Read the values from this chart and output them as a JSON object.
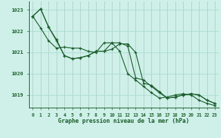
{
  "title": "Graphe pression niveau de la mer (hPa)",
  "bg_color": "#cef0e8",
  "grid_color": "#aaddd5",
  "line_color": "#1a5c2a",
  "xlim": [
    -0.5,
    23.5
  ],
  "ylim": [
    1018.4,
    1023.4
  ],
  "xticks": [
    0,
    1,
    2,
    3,
    4,
    5,
    6,
    7,
    8,
    9,
    10,
    11,
    12,
    13,
    14,
    15,
    16,
    17,
    18,
    19,
    20,
    21,
    22,
    23
  ],
  "yticks": [
    1019,
    1020,
    1021,
    1022,
    1023
  ],
  "series": [
    [
      1022.7,
      1023.05,
      1022.2,
      1021.6,
      1020.85,
      1020.7,
      1020.75,
      1020.85,
      1021.05,
      1021.05,
      1021.15,
      1021.4,
      1021.4,
      1021.0,
      1019.55,
      1019.45,
      1019.15,
      1018.85,
      1018.9,
      1019.0,
      1019.05,
      1019.0,
      1018.75,
      1018.6
    ],
    [
      1022.7,
      1023.05,
      1022.2,
      1021.55,
      1020.85,
      1020.7,
      1020.75,
      1020.85,
      1021.05,
      1021.05,
      1021.45,
      1021.45,
      1021.3,
      1019.8,
      1019.7,
      1019.4,
      1019.1,
      1018.85,
      1018.9,
      1019.0,
      1019.05,
      1019.0,
      1018.75,
      1018.6
    ],
    [
      1022.7,
      1022.15,
      1021.55,
      1021.2,
      1021.25,
      1021.2,
      1021.2,
      1021.05,
      1021.0,
      1021.45,
      1021.45,
      1021.05,
      1020.0,
      1019.7,
      1019.4,
      1019.1,
      1018.85,
      1018.9,
      1019.0,
      1019.05,
      1019.0,
      1018.75,
      1018.6,
      1018.5
    ]
  ]
}
